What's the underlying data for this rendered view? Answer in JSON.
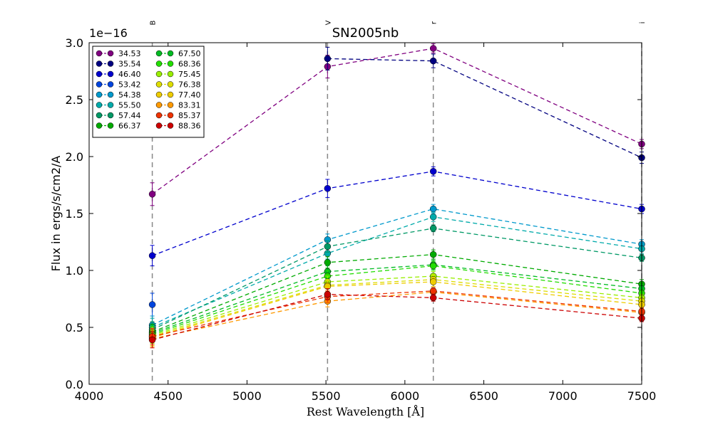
{
  "chart_data": {
    "type": "line",
    "title": "SN2005nb",
    "xlabel": "Rest Wavelength [Å]",
    "ylabel": "Flux in ergs/s/cm2/A",
    "y_offset_label": "1e−16",
    "xlim": [
      4000,
      7500
    ],
    "ylim": [
      0.0,
      3.0
    ],
    "x_ticks": [
      "4000",
      "4500",
      "5000",
      "5500",
      "6000",
      "6500",
      "7000",
      "7500"
    ],
    "y_ticks": [
      "0.0",
      "0.5",
      "1.0",
      "1.5",
      "2.0",
      "2.5",
      "3.0"
    ],
    "band_lines": [
      {
        "x": 4400,
        "label": "B"
      },
      {
        "x": 5510,
        "label": "V"
      },
      {
        "x": 6180,
        "label": "r"
      },
      {
        "x": 7500,
        "label": "i"
      }
    ],
    "x": [
      4400,
      5510,
      6180,
      7500
    ],
    "series": [
      {
        "name": "34.53",
        "color": "#800080",
        "values": [
          1.67,
          2.79,
          2.95,
          2.11
        ],
        "errors": [
          0.1,
          0.1,
          0.04,
          0.04
        ]
      },
      {
        "name": "35.54",
        "color": "#000080",
        "values": [
          null,
          2.86,
          2.84,
          1.99
        ],
        "errors": [
          0,
          0.1,
          0.06,
          0.05
        ]
      },
      {
        "name": "46.40",
        "color": "#0000cd",
        "values": [
          1.13,
          1.72,
          1.87,
          1.54
        ],
        "errors": [
          0.09,
          0.08,
          0.04,
          0.04
        ]
      },
      {
        "name": "53.42",
        "color": "#0044dd",
        "values": [
          0.7,
          null,
          null,
          null
        ],
        "errors": [
          0.1,
          0,
          0,
          0
        ]
      },
      {
        "name": "54.38",
        "color": "#0099cc",
        "values": [
          0.52,
          1.27,
          1.54,
          1.23
        ],
        "errors": [
          0.08,
          0.05,
          0.04,
          0.04
        ]
      },
      {
        "name": "55.50",
        "color": "#00aaaa",
        "values": [
          0.5,
          1.15,
          1.47,
          1.19
        ],
        "errors": [
          0.08,
          0.05,
          0.04,
          0.04
        ]
      },
      {
        "name": "57.44",
        "color": "#009966",
        "values": [
          0.48,
          1.21,
          1.37,
          1.11
        ],
        "errors": [
          0.07,
          0.05,
          0.03,
          0.03
        ]
      },
      {
        "name": "66.37",
        "color": "#00aa00",
        "values": [
          0.46,
          1.07,
          1.14,
          0.88
        ],
        "errors": [
          0.07,
          0.05,
          0.04,
          0.04
        ]
      },
      {
        "name": "67.50",
        "color": "#00bb22",
        "values": [
          0.45,
          0.99,
          1.05,
          0.84
        ],
        "errors": [
          0.07,
          0.05,
          0.04,
          0.03
        ]
      },
      {
        "name": "68.36",
        "color": "#22dd00",
        "values": [
          0.44,
          0.95,
          1.04,
          0.8
        ],
        "errors": [
          0.07,
          0.05,
          0.04,
          0.03
        ]
      },
      {
        "name": "75.45",
        "color": "#99ee00",
        "values": [
          0.43,
          0.9,
          0.95,
          0.76
        ],
        "errors": [
          0.07,
          0.05,
          0.04,
          0.03
        ]
      },
      {
        "name": "76.38",
        "color": "#dddd00",
        "values": [
          0.42,
          0.87,
          0.92,
          0.73
        ],
        "errors": [
          0.07,
          0.05,
          0.04,
          0.03
        ]
      },
      {
        "name": "77.40",
        "color": "#eecc00",
        "values": [
          0.41,
          0.86,
          0.9,
          0.7
        ],
        "errors": [
          0.07,
          0.05,
          0.04,
          0.03
        ]
      },
      {
        "name": "83.31",
        "color": "#ff9900",
        "values": [
          0.4,
          0.73,
          0.81,
          0.63
        ],
        "errors": [
          0.07,
          0.05,
          0.03,
          0.03
        ]
      },
      {
        "name": "85.37",
        "color": "#ee3300",
        "values": [
          0.42,
          0.77,
          0.82,
          0.64
        ],
        "errors": [
          0.07,
          0.05,
          0.03,
          0.03
        ]
      },
      {
        "name": "88.36",
        "color": "#cc0000",
        "values": [
          0.39,
          0.79,
          0.76,
          0.58
        ],
        "errors": [
          0.07,
          0.05,
          0.03,
          0.03
        ]
      }
    ]
  }
}
